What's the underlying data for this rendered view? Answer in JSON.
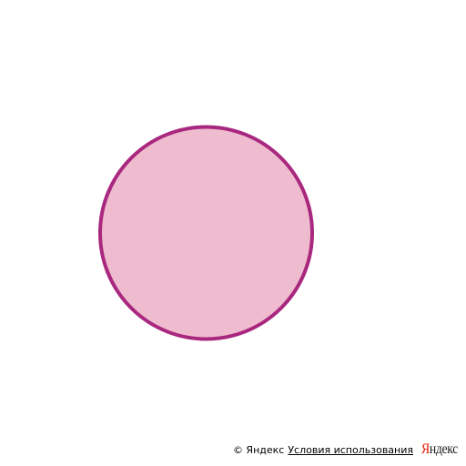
{
  "map": {
    "overlay": {
      "shape": "circle",
      "fill_color": "#efbbce",
      "stroke_color": "#a9287f"
    }
  },
  "attribution": {
    "copyright": "© Яндекс",
    "terms_link": "Условия использования",
    "logo_first_letter": "Я",
    "logo_rest": "ндекс",
    "logo_color": "#e61400"
  }
}
